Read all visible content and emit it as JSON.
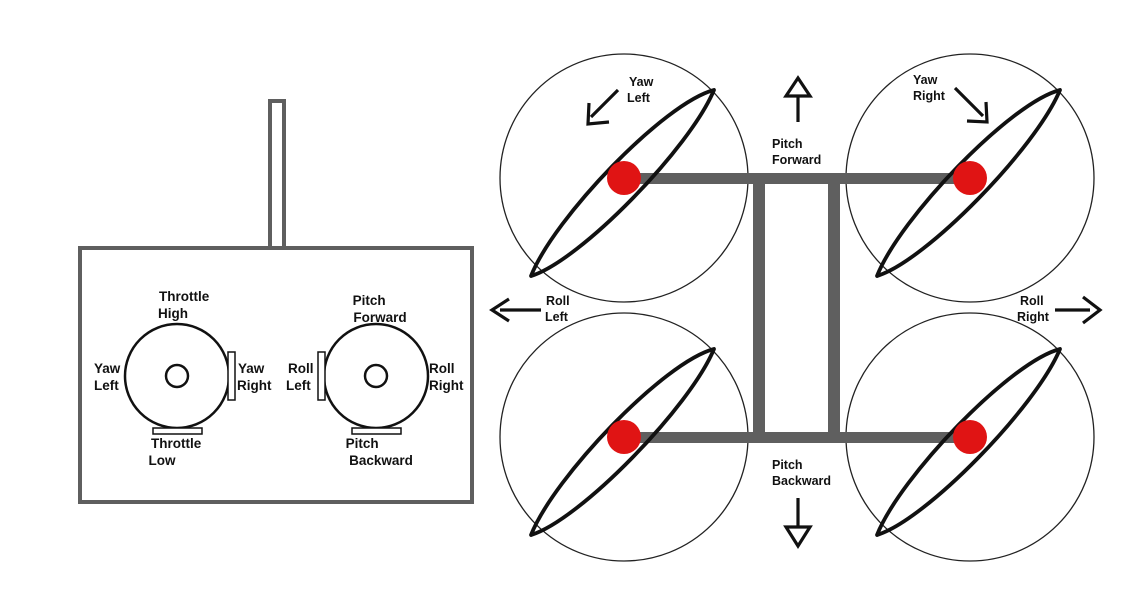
{
  "colors": {
    "frame": "#5f5f5f",
    "hub": "#e01414",
    "outline": "#111111",
    "background": "#ffffff"
  },
  "controller": {
    "left_stick": {
      "top": [
        "Throttle",
        "High"
      ],
      "bottom": [
        "Throttle",
        "Low"
      ],
      "left": [
        "Yaw",
        "Left"
      ],
      "right": [
        "Yaw",
        "Right"
      ]
    },
    "right_stick": {
      "top": [
        "Pitch",
        "Forward"
      ],
      "bottom": [
        "Pitch",
        "Backward"
      ],
      "left": [
        "Roll",
        "Left"
      ],
      "right": [
        "Roll",
        "Right"
      ]
    }
  },
  "quad": {
    "yaw_left": [
      "Yaw",
      "Left"
    ],
    "yaw_right": [
      "Yaw",
      "Right"
    ],
    "pitch_forward": [
      "Pitch",
      "Forward"
    ],
    "pitch_backward": [
      "Pitch",
      "Backward"
    ],
    "roll_left": [
      "Roll",
      "Left"
    ],
    "roll_right": [
      "Roll",
      "Right"
    ]
  }
}
